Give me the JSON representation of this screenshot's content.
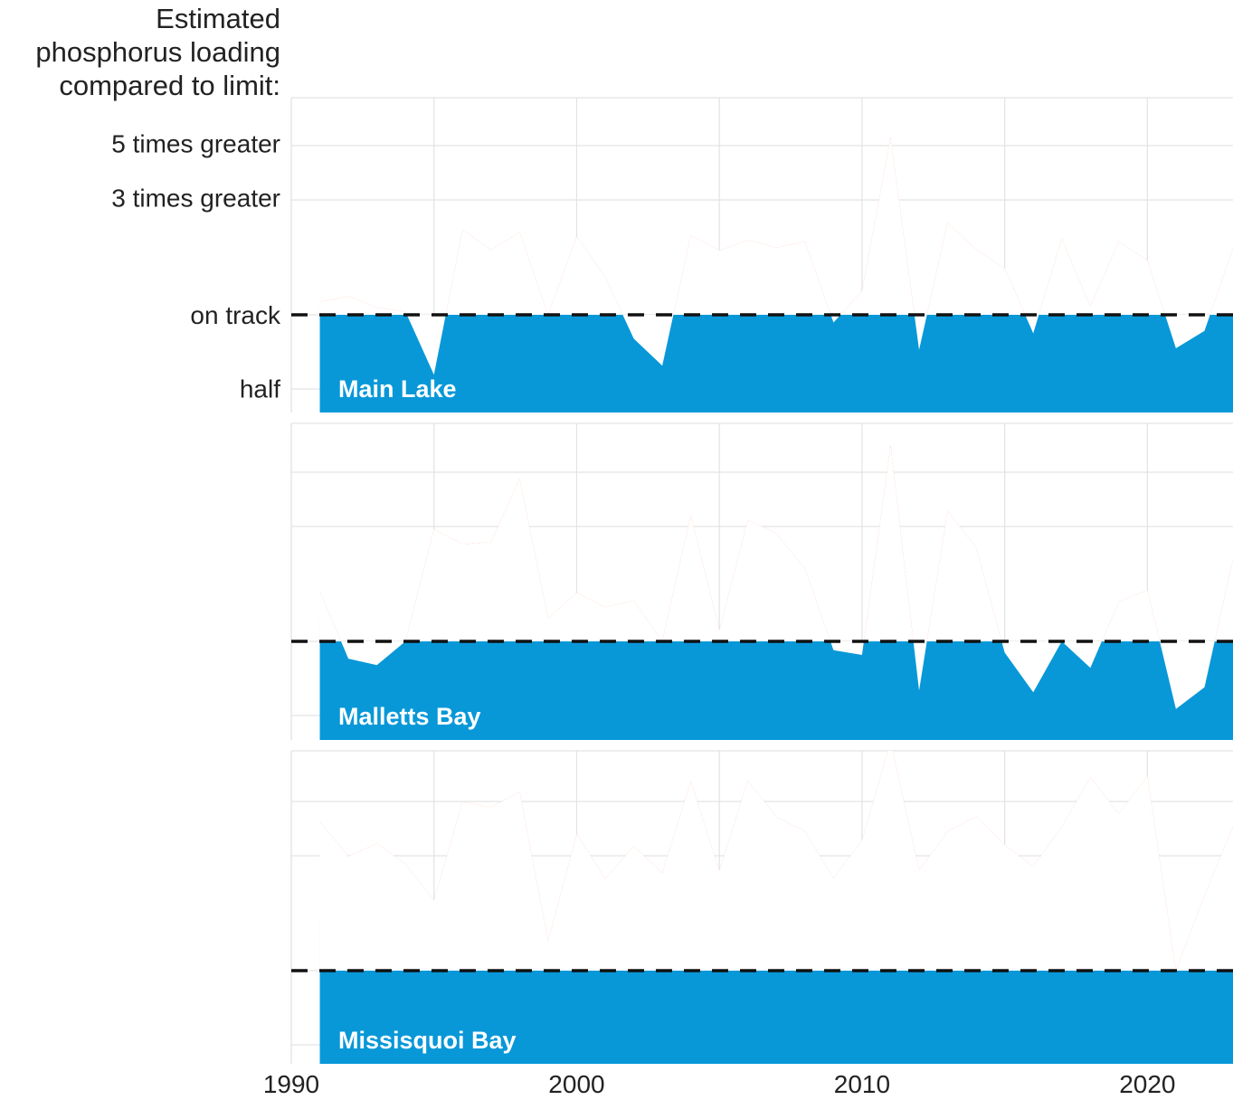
{
  "colors": {
    "above": "#f07850",
    "below": "#0898d8",
    "grid": "#e3e3e3",
    "reference_line": "#111111"
  },
  "chart_data": {
    "type": "area",
    "title": "",
    "ylabel": "Estimated\nphosphorus loading\ncompared to limit:",
    "y_scale": "log",
    "y_tick_labels": [
      {
        "value": 5,
        "label": "5 times greater"
      },
      {
        "value": 3,
        "label": "3 times greater"
      },
      {
        "value": 1,
        "label": "on track"
      },
      {
        "value": 0.5,
        "label": "half"
      }
    ],
    "reference_value": 1,
    "xlim": [
      1990,
      2023
    ],
    "x_ticks": [
      1990,
      2000,
      2010,
      2020
    ],
    "x": [
      1991,
      1992,
      1993,
      1994,
      1995,
      1996,
      1997,
      1998,
      1999,
      2000,
      2001,
      2002,
      2003,
      2004,
      2005,
      2006,
      2007,
      2008,
      2009,
      2010,
      2011,
      2012,
      2013,
      2014,
      2015,
      2016,
      2017,
      2018,
      2019,
      2020,
      2021,
      2022,
      2023
    ],
    "panels": [
      {
        "name": "Main Lake",
        "values": [
          1.13,
          1.19,
          1.07,
          1.03,
          0.57,
          2.22,
          1.84,
          2.17,
          1.0,
          2.09,
          1.43,
          0.8,
          0.62,
          2.11,
          1.83,
          2.02,
          1.88,
          1.99,
          0.93,
          1.25,
          5.3,
          0.72,
          2.37,
          1.85,
          1.55,
          0.84,
          2.05,
          1.08,
          1.99,
          1.67,
          0.73,
          0.86,
          1.87
        ]
      },
      {
        "name": "Malletts Bay",
        "values": [
          1.6,
          0.85,
          0.8,
          1.0,
          2.87,
          2.49,
          2.54,
          4.61,
          1.24,
          1.58,
          1.38,
          1.47,
          1.0,
          3.27,
          1.11,
          3.13,
          2.76,
          1.98,
          0.92,
          0.88,
          6.3,
          0.63,
          3.4,
          2.41,
          0.9,
          0.62,
          1.0,
          0.78,
          1.45,
          1.62,
          0.53,
          0.65,
          2.17
        ]
      },
      {
        "name": "Missisquoi Bay",
        "values": [
          4.05,
          2.92,
          3.3,
          2.72,
          1.94,
          4.88,
          4.64,
          5.36,
          1.32,
          3.61,
          2.37,
          3.22,
          2.5,
          5.91,
          2.56,
          5.97,
          4.23,
          3.71,
          2.38,
          3.4,
          8.6,
          2.57,
          3.7,
          4.24,
          3.26,
          2.66,
          3.86,
          6.15,
          4.37,
          6.23,
          1.0,
          2.03,
          3.87
        ]
      }
    ]
  }
}
